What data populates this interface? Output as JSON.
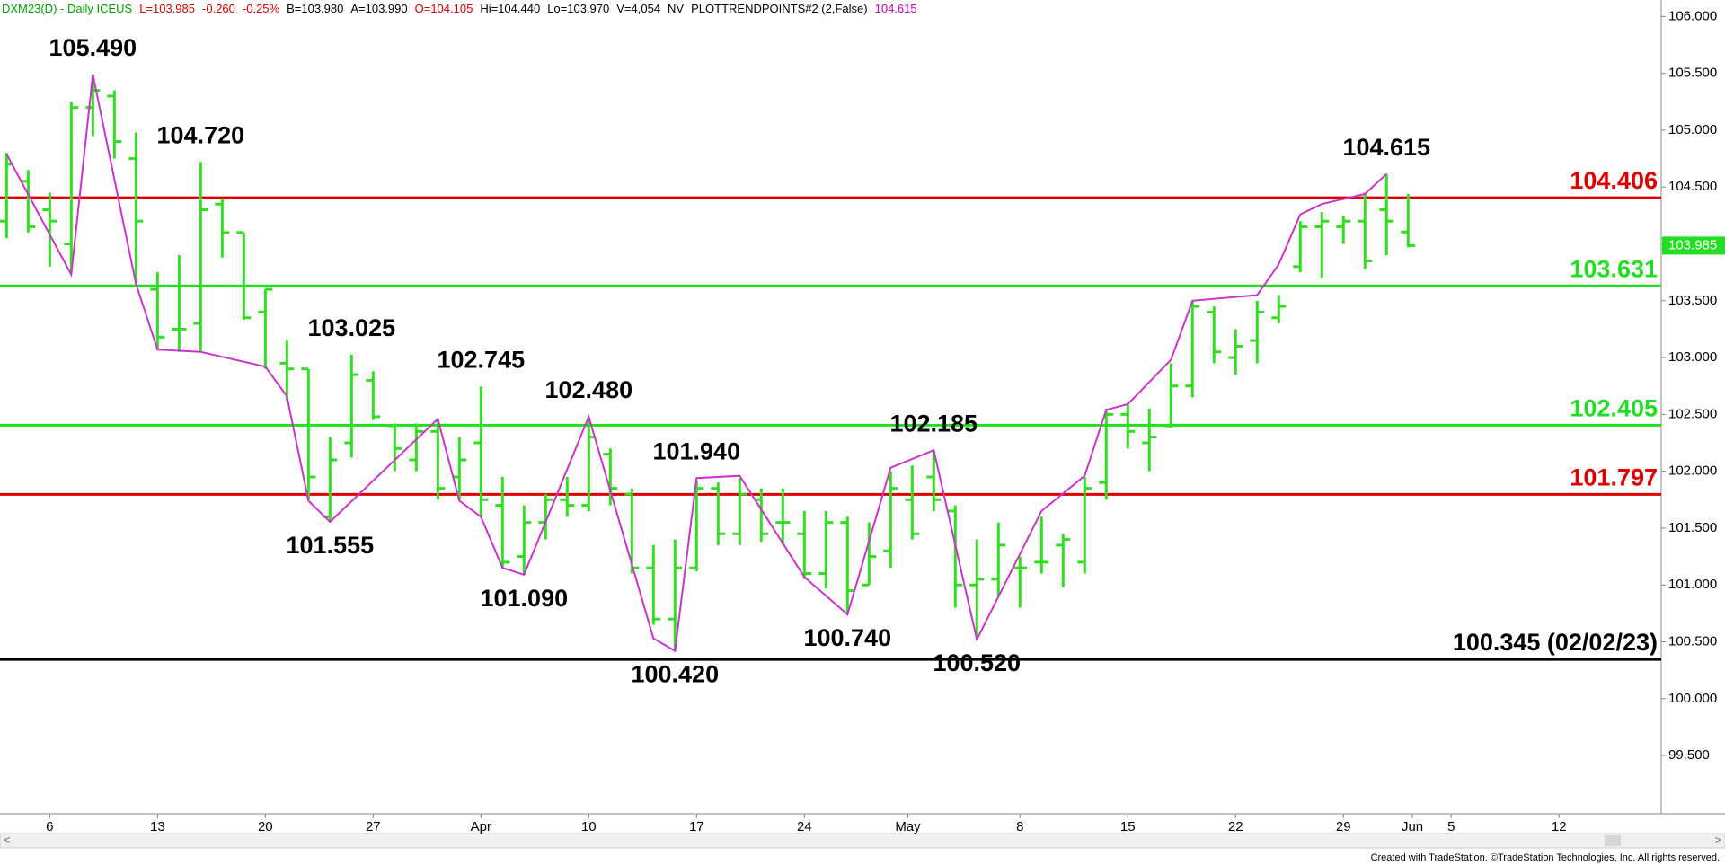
{
  "chart_data": {
    "type": "ohlc",
    "header": [
      {
        "text": "DXM23(D) - Daily  ICEUS",
        "color": "#00a000"
      },
      {
        "text": "L=103.985",
        "color": "#d00000"
      },
      {
        "text": "-0.260",
        "color": "#d00000"
      },
      {
        "text": "-0.25%",
        "color": "#d00000"
      },
      {
        "text": "B=103.980",
        "color": "#000000"
      },
      {
        "text": "A=103.990",
        "color": "#000000"
      },
      {
        "text": "O=104.105",
        "color": "#d00000"
      },
      {
        "text": "Hi=104.440",
        "color": "#000000"
      },
      {
        "text": "Lo=103.970",
        "color": "#000000"
      },
      {
        "text": "V=4,054",
        "color": "#000000"
      },
      {
        "text": "NV",
        "color": "#000000"
      },
      {
        "text": "PLOTTRENDPOINTS#2 (2,False)",
        "color": "#000000"
      },
      {
        "text": "104.615",
        "color": "#c000c0"
      }
    ],
    "footer": "Created with TradeStation. ©TradeStation Technologies, Inc. All rights reserved.",
    "bar_color": "#33dd22",
    "bars": {
      "open": [
        104.2,
        104.55,
        104.3,
        104.0,
        105.2,
        105.3,
        104.75,
        103.6,
        103.25,
        103.3,
        104.35,
        104.1,
        103.4,
        102.95,
        102.9,
        101.6,
        102.25,
        102.8,
        102.4,
        102.1,
        102.35,
        101.95,
        102.25,
        101.7,
        101.25,
        101.55,
        101.75,
        101.7,
        102.15,
        101.8,
        101.15,
        100.7,
        101.15,
        101.85,
        101.45,
        101.75,
        101.55,
        101.45,
        101.1,
        101.55,
        101.0,
        101.3,
        101.75,
        101.95,
        101.65,
        101.0,
        101.05,
        101.15,
        101.2,
        101.35,
        101.2,
        101.9,
        102.5,
        102.25,
        102.4,
        102.75,
        103.4,
        103.0,
        103.15,
        103.35,
        103.8,
        104.15,
        104.15,
        104.2,
        104.3,
        104.105
      ],
      "high": [
        104.8,
        104.65,
        104.45,
        105.25,
        105.49,
        105.35,
        104.98,
        103.75,
        103.9,
        104.72,
        104.4,
        104.1,
        103.6,
        103.15,
        102.9,
        102.3,
        103.025,
        102.88,
        102.42,
        102.42,
        102.45,
        102.3,
        102.745,
        101.95,
        101.7,
        101.8,
        101.95,
        102.48,
        102.2,
        101.85,
        101.35,
        101.4,
        101.92,
        101.9,
        101.94,
        101.85,
        101.85,
        101.65,
        101.65,
        101.6,
        101.55,
        102.0,
        102.05,
        102.185,
        101.7,
        101.4,
        101.55,
        101.25,
        101.6,
        101.45,
        101.95,
        102.55,
        102.6,
        102.55,
        102.95,
        103.5,
        103.45,
        103.25,
        103.5,
        103.55,
        104.2,
        104.28,
        104.25,
        104.45,
        104.615,
        104.44
      ],
      "low": [
        104.05,
        104.1,
        103.8,
        103.75,
        104.95,
        104.75,
        103.62,
        103.08,
        103.05,
        103.05,
        103.88,
        103.33,
        102.9,
        102.62,
        101.75,
        101.555,
        102.12,
        102.45,
        102.0,
        102.0,
        101.75,
        101.75,
        101.6,
        101.15,
        101.09,
        101.4,
        101.6,
        101.65,
        101.7,
        101.1,
        100.65,
        100.42,
        101.12,
        101.35,
        101.35,
        101.38,
        101.35,
        101.05,
        100.97,
        100.74,
        101.0,
        101.15,
        101.4,
        101.65,
        100.8,
        100.52,
        100.9,
        100.8,
        101.1,
        100.98,
        101.1,
        101.75,
        102.2,
        102.0,
        102.38,
        102.65,
        102.95,
        102.85,
        102.95,
        103.3,
        103.75,
        103.7,
        104.0,
        103.78,
        103.9,
        103.97
      ],
      "close": [
        104.7,
        104.15,
        104.2,
        105.2,
        105.35,
        104.9,
        104.2,
        103.18,
        103.25,
        104.3,
        104.1,
        103.35,
        103.6,
        102.9,
        101.95,
        102.1,
        102.85,
        102.48,
        102.2,
        102.35,
        101.85,
        102.1,
        101.75,
        101.2,
        101.55,
        101.75,
        101.7,
        102.3,
        101.85,
        101.15,
        100.7,
        101.15,
        101.85,
        101.45,
        101.8,
        101.45,
        101.55,
        101.1,
        101.55,
        100.95,
        101.25,
        101.85,
        101.45,
        101.75,
        101.0,
        101.05,
        101.35,
        101.15,
        101.2,
        101.4,
        101.85,
        102.5,
        102.35,
        102.3,
        102.75,
        103.45,
        103.05,
        103.1,
        103.4,
        103.45,
        104.15,
        104.2,
        104.2,
        103.85,
        104.2,
        103.985
      ]
    },
    "trend": {
      "color": "#cc33cc",
      "x": [
        0,
        3,
        4,
        6,
        7,
        9,
        12,
        13,
        14,
        15,
        20,
        21,
        22,
        23,
        24,
        27,
        30,
        31,
        32,
        34,
        37,
        39,
        41,
        43,
        45,
        48,
        50,
        51,
        52,
        54,
        55,
        58,
        59,
        60,
        61,
        63,
        64
      ],
      "y": [
        104.79,
        103.73,
        105.49,
        103.65,
        103.07,
        103.05,
        102.92,
        102.66,
        101.74,
        101.555,
        102.46,
        101.74,
        101.6,
        101.15,
        101.09,
        102.48,
        100.53,
        100.42,
        101.94,
        101.96,
        101.07,
        100.74,
        102.03,
        102.185,
        100.52,
        101.65,
        101.96,
        102.54,
        102.59,
        102.98,
        103.5,
        103.55,
        103.82,
        104.26,
        104.35,
        104.44,
        104.615
      ]
    },
    "swing_labels": {
      "x": [
        4,
        9,
        16,
        15,
        22,
        24,
        27,
        31,
        32,
        39,
        43,
        45,
        64
      ],
      "values": [
        {
          "value": 105.49,
          "label": "105.490"
        },
        {
          "value": 104.72,
          "label": "104.720"
        },
        103.025,
        101.555,
        102.745,
        {
          "value": 101.09,
          "label": "101.090"
        },
        {
          "value": 102.48,
          "label": "102.480"
        },
        {
          "value": 100.42,
          "label": "100.420"
        },
        {
          "value": 101.94,
          "label": "101.940"
        },
        {
          "value": 100.74,
          "label": "100.740"
        },
        102.185,
        {
          "value": 100.52,
          "label": "100.520"
        },
        104.615
      ],
      "sides": [
        "above",
        "above",
        "above",
        "below",
        "above",
        "below",
        "above",
        "below",
        "above",
        "below",
        "above",
        "below",
        "above"
      ]
    },
    "levels": [
      {
        "value": 104.406,
        "color": "#dd0000"
      },
      {
        "value": 103.631,
        "color": "#22dd22"
      },
      {
        "value": 102.405,
        "color": "#22dd22"
      },
      {
        "value": 101.797,
        "color": "#dd0000"
      },
      {
        "value": {
          "value": 100.345,
          "label": "100.345 (02/02/23)"
        },
        "color": "#000000"
      }
    ],
    "last_price": 103.985,
    "last_price_color": "#22dd22",
    "xlim": [
      -0.306,
      76.74
    ],
    "xticks": [
      {
        "value": 2,
        "label": "6"
      },
      {
        "value": 7,
        "label": "13"
      },
      {
        "value": 12,
        "label": "20"
      },
      {
        "value": 17,
        "label": "27"
      },
      {
        "value": 22,
        "label": "Apr"
      },
      {
        "value": 27,
        "label": "10"
      },
      {
        "value": 32,
        "label": "17"
      },
      {
        "value": 37,
        "label": "24"
      },
      {
        "value": 41.8,
        "label": "May"
      },
      {
        "value": 47,
        "label": "8"
      },
      {
        "value": 52,
        "label": "15"
      },
      {
        "value": 57,
        "label": "22"
      },
      {
        "value": 62,
        "label": "29"
      },
      {
        "value": 65.2,
        "label": "Jun"
      },
      {
        "value": 67,
        "label": "5"
      },
      {
        "value": 72,
        "label": "12"
      }
    ],
    "ylim": [
      98.987,
      106.145
    ],
    "yticks": [
      {
        "value": 99.5,
        "label": "99.500"
      },
      {
        "value": 100,
        "label": "100.000"
      },
      {
        "value": 100.5,
        "label": "100.500"
      },
      {
        "value": 101,
        "label": "101.000"
      },
      {
        "value": 101.5,
        "label": "101.500"
      },
      {
        "value": 102,
        "label": "102.000"
      },
      {
        "value": 102.5,
        "label": "102.500"
      },
      {
        "value": 103,
        "label": "103.000"
      },
      {
        "value": 103.5,
        "label": "103.500"
      },
      {
        "value": 104,
        "label": "104.000"
      },
      {
        "value": 104.5,
        "label": "104.500"
      },
      {
        "value": 105,
        "label": "105.000"
      },
      {
        "value": 105.5,
        "label": "105.500"
      },
      {
        "value": 106,
        "label": "106.000"
      }
    ]
  }
}
